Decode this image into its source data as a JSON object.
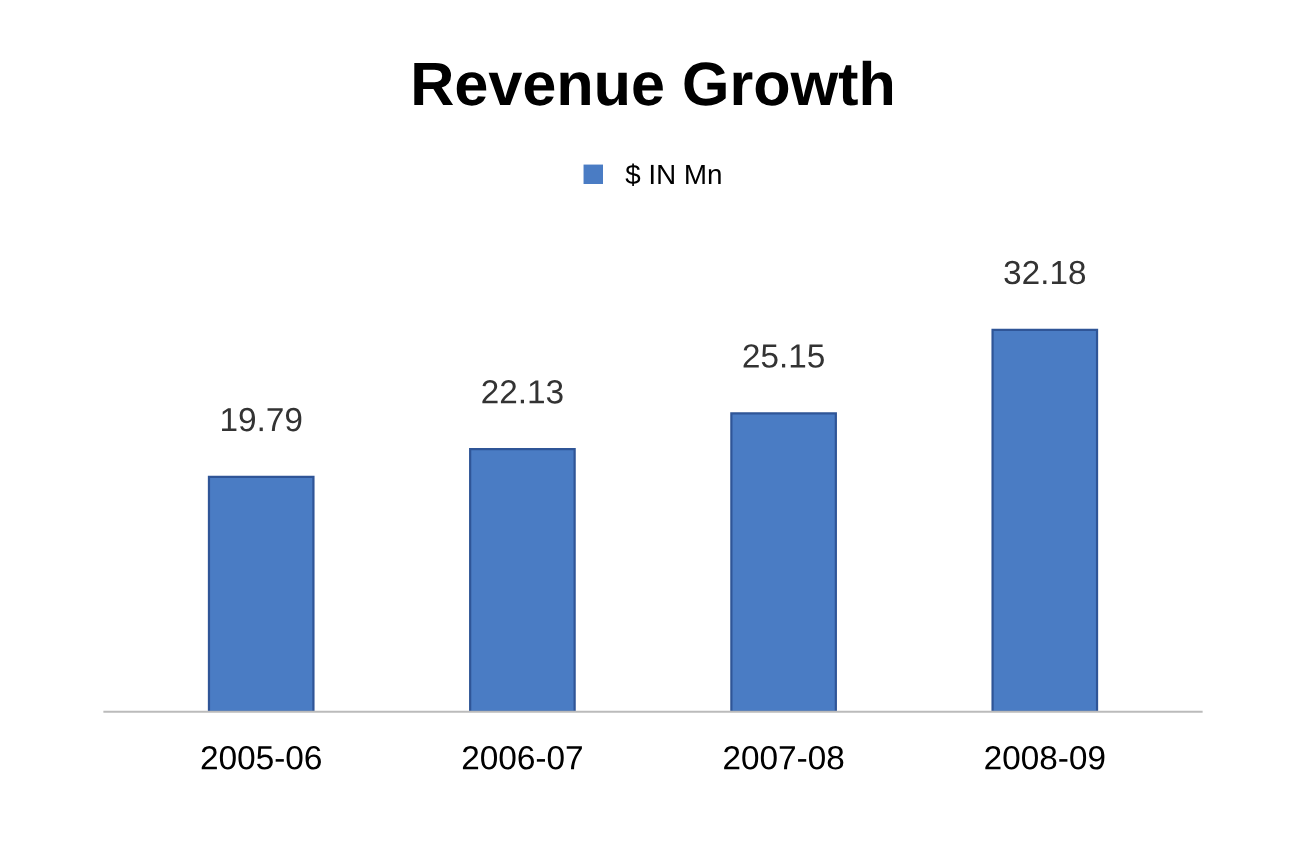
{
  "chart_data": {
    "type": "bar",
    "title": "Revenue Growth",
    "categories": [
      "2005-06",
      "2006-07",
      "2007-08",
      "2008-09"
    ],
    "series": [
      {
        "name": "$ IN Mn",
        "color": "#4a7cc4",
        "values": [
          19.79,
          22.13,
          25.15,
          32.18
        ]
      }
    ],
    "data_labels": true,
    "legend": "top",
    "grid": false
  }
}
